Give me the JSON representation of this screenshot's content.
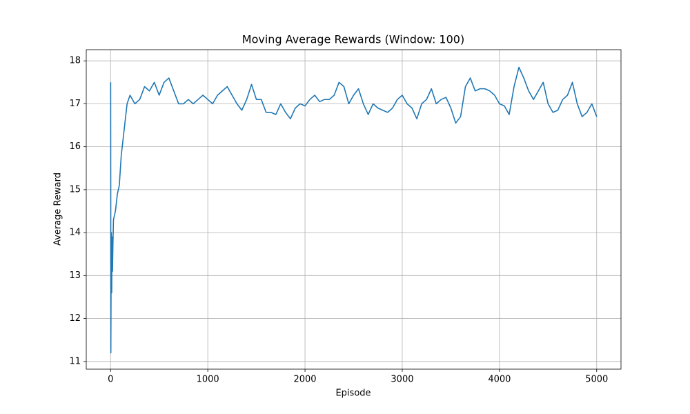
{
  "chart_data": {
    "type": "line",
    "title": "Moving Average Rewards (Window: 100)",
    "x_label": "Episode",
    "y_label": "Average Reward",
    "color": "#1f77b4",
    "grid": true,
    "xlim": [
      -250,
      5250
    ],
    "ylim": [
      10.82,
      18.26
    ],
    "xticks": [
      0,
      1000,
      2000,
      3000,
      4000,
      5000
    ],
    "yticks": [
      11,
      12,
      13,
      14,
      15,
      16,
      17,
      18
    ],
    "x": [
      1,
      2,
      3,
      5,
      8,
      12,
      15,
      20,
      25,
      30,
      50,
      70,
      90,
      110,
      130,
      150,
      170,
      200,
      250,
      300,
      350,
      400,
      450,
      500,
      550,
      600,
      650,
      700,
      750,
      800,
      850,
      900,
      950,
      1000,
      1050,
      1100,
      1150,
      1200,
      1250,
      1300,
      1350,
      1400,
      1450,
      1500,
      1550,
      1600,
      1650,
      1700,
      1750,
      1800,
      1850,
      1900,
      1950,
      2000,
      2050,
      2100,
      2150,
      2200,
      2250,
      2300,
      2350,
      2400,
      2450,
      2500,
      2550,
      2600,
      2650,
      2700,
      2750,
      2800,
      2850,
      2900,
      2950,
      3000,
      3050,
      3100,
      3150,
      3200,
      3250,
      3300,
      3350,
      3400,
      3450,
      3500,
      3550,
      3600,
      3650,
      3700,
      3750,
      3800,
      3850,
      3900,
      3950,
      4000,
      4050,
      4100,
      4150,
      4200,
      4250,
      4300,
      4350,
      4400,
      4450,
      4500,
      4550,
      4600,
      4650,
      4700,
      4750,
      4800,
      4850,
      4900,
      4950,
      5000
    ],
    "values": [
      17.5,
      15.3,
      11.2,
      12.5,
      14.0,
      12.6,
      13.9,
      13.1,
      13.8,
      14.3,
      14.5,
      14.9,
      15.1,
      15.8,
      16.2,
      16.6,
      17.0,
      17.2,
      17.0,
      17.1,
      17.4,
      17.3,
      17.5,
      17.2,
      17.5,
      17.6,
      17.3,
      17.0,
      17.0,
      17.1,
      17.0,
      17.1,
      17.2,
      17.1,
      17.0,
      17.2,
      17.3,
      17.4,
      17.2,
      17.0,
      16.85,
      17.1,
      17.45,
      17.1,
      17.1,
      16.8,
      16.8,
      16.75,
      17.0,
      16.8,
      16.65,
      16.9,
      17.0,
      16.95,
      17.1,
      17.2,
      17.05,
      17.1,
      17.1,
      17.2,
      17.5,
      17.4,
      17.0,
      17.2,
      17.35,
      17.0,
      16.75,
      17.0,
      16.9,
      16.85,
      16.8,
      16.9,
      17.1,
      17.2,
      17.0,
      16.9,
      16.65,
      17.0,
      17.1,
      17.35,
      17.0,
      17.1,
      17.15,
      16.9,
      16.55,
      16.7,
      17.4,
      17.6,
      17.3,
      17.35,
      17.35,
      17.3,
      17.2,
      17.0,
      16.95,
      16.75,
      17.4,
      17.85,
      17.6,
      17.3,
      17.1,
      17.3,
      17.5,
      17.0,
      16.8,
      16.85,
      17.1,
      17.2,
      17.5,
      17.0,
      16.7,
      16.8,
      17.0,
      16.7
    ]
  }
}
